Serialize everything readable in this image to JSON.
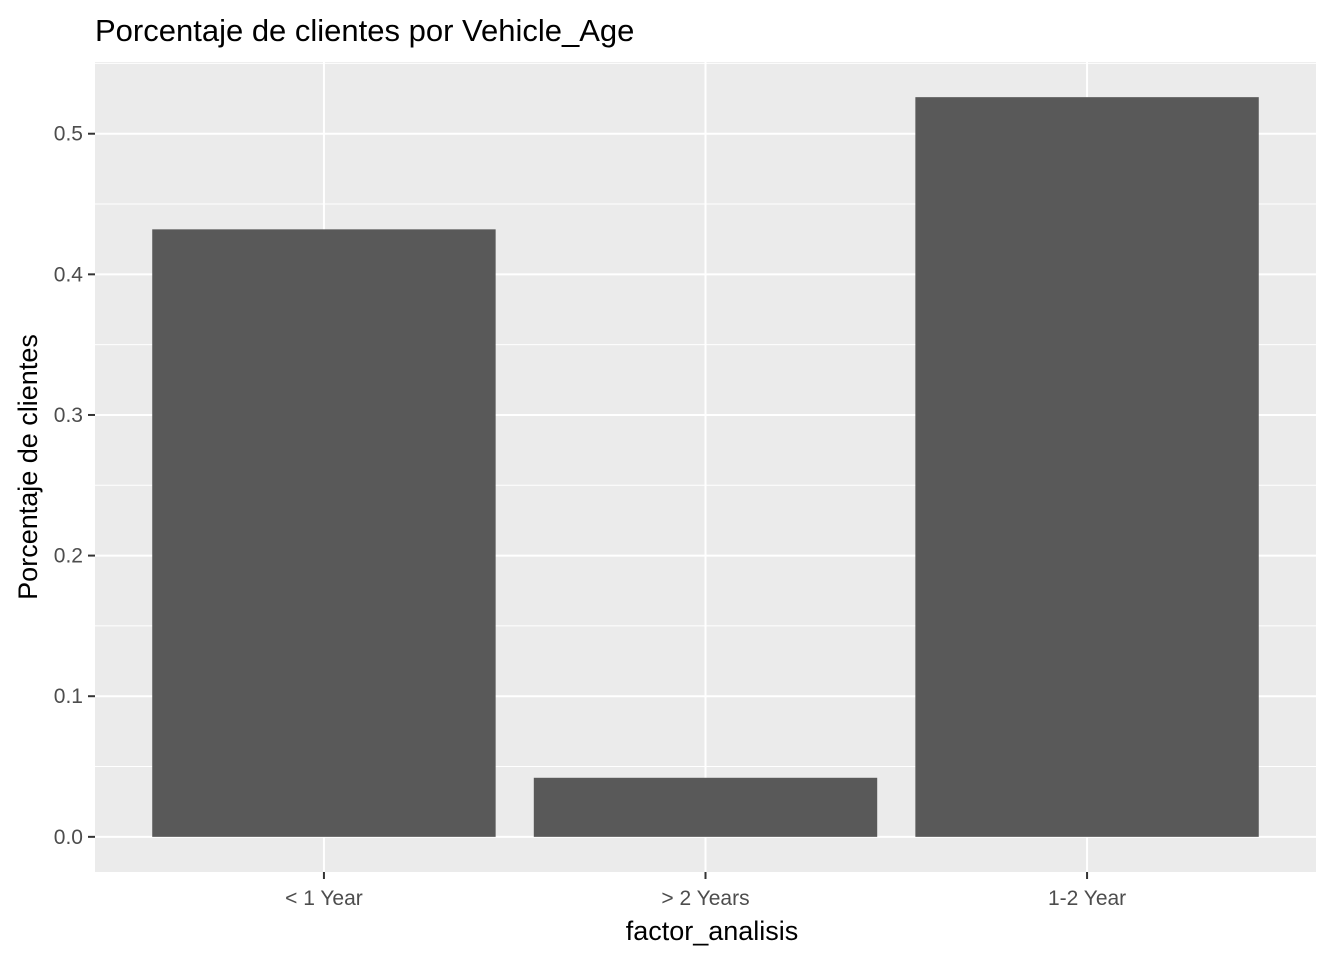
{
  "chart_data": {
    "type": "bar",
    "title": "Porcentaje de clientes por Vehicle_Age",
    "xlabel": "factor_analisis",
    "ylabel": "Porcentaje de clientes",
    "categories": [
      "< 1 Year",
      "> 2 Years",
      "1-2 Year"
    ],
    "values": [
      0.432,
      0.042,
      0.526
    ],
    "ylim": [
      -0.025,
      0.551
    ],
    "yticks": [
      0.0,
      0.1,
      0.2,
      0.3,
      0.4,
      0.5
    ],
    "ytick_labels": [
      "0.0",
      "0.1",
      "0.2",
      "0.3",
      "0.4",
      "0.5"
    ],
    "grid": true,
    "legend": "none",
    "colors": {
      "bar": "#595959",
      "panel_background": "#ebebeb",
      "grid": "#ffffff",
      "tick_text": "#4d4d4d",
      "tick_mark": "#333333"
    }
  }
}
